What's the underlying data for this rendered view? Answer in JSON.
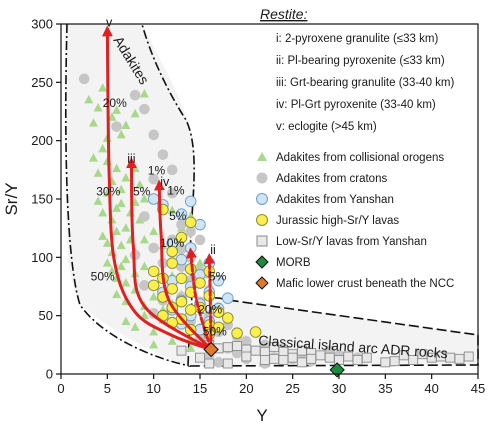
{
  "chart_data": {
    "type": "scatter",
    "xlabel": "Y",
    "ylabel": "Sr/Y",
    "xlim": [
      0,
      45
    ],
    "ylim": [
      0,
      300
    ],
    "xticks": [
      "0",
      "5",
      "10",
      "15",
      "20",
      "25",
      "30",
      "35",
      "40",
      "45"
    ],
    "yticks": [
      "0",
      "50",
      "100",
      "150",
      "200",
      "250",
      "300"
    ],
    "grid": false,
    "legend_position": "right",
    "colors": {
      "adakite_orogen": "#a8d88a",
      "adakite_craton": "#c6c6c6",
      "adakite_yanshan_fill": "#cfe4f5",
      "adakite_yanshan_edge": "#6b9cc9",
      "jurassic_fill": "#fbef4c",
      "jurassic_edge": "#8a8a3a",
      "low_sry_fill": "#e8e8e8",
      "low_sry_edge": "#8a8a8a",
      "morb": "#1a8c3c",
      "mafic_crust": "#e07a2a",
      "model_curve": "#e02020"
    },
    "restite": {
      "title": "Restite:",
      "items": [
        "i: 2-pyroxene granulite (≤33 km)",
        "ii: Pl-bearing pyroxenite (≤33 km)",
        "iii: Grt-bearing granulite (33-40 km)",
        "iv: Pl-Grt pyroxenite (33-40 km)",
        "v: eclogite (>45 km)"
      ]
    },
    "regions": {
      "adakites": "Adakites",
      "classical": "Classical island arc ADR rocks"
    },
    "series": [
      {
        "name": "Adakites from collisional orogens",
        "marker": "triangle",
        "points": [
          [
            3,
            235
          ],
          [
            3.5,
            215
          ],
          [
            4,
            228
          ],
          [
            4.5,
            245
          ],
          [
            5,
            202
          ],
          [
            5.5,
            220
          ],
          [
            6,
            226
          ],
          [
            6.5,
            205
          ],
          [
            7,
            213
          ],
          [
            8,
            223
          ],
          [
            9,
            240
          ],
          [
            3.5,
            185
          ],
          [
            4,
            172
          ],
          [
            4.5,
            193
          ],
          [
            5,
            182
          ],
          [
            5.5,
            165
          ],
          [
            6,
            176
          ],
          [
            6.5,
            158
          ],
          [
            7,
            168
          ],
          [
            7.5,
            180
          ],
          [
            8,
            176
          ],
          [
            8.5,
            162
          ],
          [
            4,
            148
          ],
          [
            4.5,
            138
          ],
          [
            5,
            155
          ],
          [
            5.5,
            132
          ],
          [
            6,
            142
          ],
          [
            6.5,
            146
          ],
          [
            7,
            125
          ],
          [
            7.5,
            138
          ],
          [
            8,
            147
          ],
          [
            8.5,
            132
          ],
          [
            9,
            150
          ],
          [
            4.5,
            118
          ],
          [
            5,
            112
          ],
          [
            5.5,
            104
          ],
          [
            6,
            122
          ],
          [
            6.5,
            110
          ],
          [
            7,
            98
          ],
          [
            7.5,
            115
          ],
          [
            8,
            104
          ],
          [
            9,
            115
          ],
          [
            10,
            122
          ],
          [
            5,
            95
          ],
          [
            5.5,
            88
          ],
          [
            6,
            82
          ],
          [
            6.5,
            92
          ],
          [
            7,
            78
          ],
          [
            8,
            86
          ],
          [
            9,
            92
          ],
          [
            10,
            75
          ],
          [
            11,
            96
          ],
          [
            12,
            84
          ],
          [
            6,
            68
          ],
          [
            7,
            62
          ],
          [
            8,
            72
          ],
          [
            9,
            58
          ],
          [
            10,
            66
          ],
          [
            11,
            55
          ],
          [
            12,
            60
          ],
          [
            13,
            68
          ],
          [
            7,
            45
          ],
          [
            8,
            40
          ],
          [
            9,
            50
          ],
          [
            10,
            36
          ],
          [
            11,
            46
          ],
          [
            12,
            42
          ],
          [
            13,
            48
          ],
          [
            14,
            30
          ],
          [
            10,
            25
          ],
          [
            12,
            28
          ],
          [
            14,
            22
          ],
          [
            15,
            40
          ],
          [
            13,
            125
          ],
          [
            14,
            135
          ],
          [
            12,
            140
          ],
          [
            15,
            95
          ],
          [
            11,
            110
          ],
          [
            16,
            85
          ]
        ]
      },
      {
        "name": "Adakites from cratons",
        "marker": "circle",
        "points": [
          [
            2.5,
            253
          ],
          [
            8,
            239
          ],
          [
            9,
            227
          ],
          [
            6,
            212
          ],
          [
            10,
            205
          ],
          [
            11,
            188
          ],
          [
            12,
            175
          ],
          [
            10,
            167
          ],
          [
            12,
            155
          ],
          [
            11,
            142
          ],
          [
            9,
            135
          ],
          [
            13,
            128
          ],
          [
            14,
            122
          ],
          [
            12,
            115
          ],
          [
            10,
            108
          ],
          [
            8,
            102
          ],
          [
            11,
            95
          ],
          [
            13,
            92
          ],
          [
            15,
            88
          ],
          [
            14,
            80
          ],
          [
            12,
            78
          ],
          [
            16,
            72
          ],
          [
            13,
            66
          ],
          [
            15,
            62
          ],
          [
            17,
            57
          ],
          [
            16,
            50
          ],
          [
            14,
            45
          ],
          [
            18,
            42
          ],
          [
            17,
            36
          ],
          [
            19,
            32
          ],
          [
            20,
            28
          ],
          [
            15,
            30
          ],
          [
            18,
            22
          ],
          [
            21,
            20
          ],
          [
            22,
            25
          ],
          [
            24,
            22
          ],
          [
            26,
            18
          ],
          [
            23,
            14
          ],
          [
            25,
            13
          ],
          [
            27,
            11
          ],
          [
            20,
            13
          ],
          [
            19,
            18
          ],
          [
            16,
            16
          ],
          [
            17,
            10
          ],
          [
            22,
            9
          ],
          [
            29,
            20
          ],
          [
            30,
            16
          ],
          [
            32,
            14
          ],
          [
            14,
            100
          ],
          [
            13,
            107
          ],
          [
            15,
            115
          ],
          [
            9,
            76
          ],
          [
            10,
            52
          ],
          [
            11,
            63
          ]
        ]
      },
      {
        "name": "Adakites from Yanshan",
        "marker": "circle-open",
        "points": [
          [
            10,
            150
          ],
          [
            11,
            145
          ],
          [
            14,
            148
          ],
          [
            13,
            137
          ],
          [
            15,
            128
          ],
          [
            12,
            112
          ],
          [
            14,
            108
          ],
          [
            13,
            98
          ],
          [
            16,
            95
          ],
          [
            15,
            85
          ],
          [
            17,
            80
          ],
          [
            14,
            75
          ],
          [
            16,
            70
          ],
          [
            13,
            63
          ],
          [
            15,
            60
          ],
          [
            12,
            55
          ],
          [
            17,
            56
          ],
          [
            14,
            50
          ],
          [
            16,
            45
          ],
          [
            13,
            43
          ],
          [
            15,
            38
          ],
          [
            12,
            80
          ],
          [
            18,
            65
          ],
          [
            11,
            70
          ]
        ]
      },
      {
        "name": "Jurassic high-Sr/Y lavas",
        "marker": "circle",
        "points": [
          [
            11,
            141
          ],
          [
            13,
            117
          ],
          [
            14,
            130
          ],
          [
            12,
            105
          ],
          [
            12,
            95
          ],
          [
            10,
            88
          ],
          [
            14,
            90
          ],
          [
            16,
            88
          ],
          [
            11,
            82
          ],
          [
            13,
            82
          ],
          [
            15,
            78
          ],
          [
            10,
            76
          ],
          [
            12,
            73
          ],
          [
            14,
            70
          ],
          [
            16,
            67
          ],
          [
            11,
            66
          ],
          [
            13,
            62
          ],
          [
            15,
            57
          ],
          [
            17,
            53
          ],
          [
            12,
            57
          ],
          [
            14,
            55
          ],
          [
            11,
            50
          ],
          [
            13,
            47
          ],
          [
            16,
            42
          ],
          [
            14,
            38
          ],
          [
            12,
            44
          ],
          [
            18,
            48
          ],
          [
            17,
            40
          ],
          [
            19,
            35
          ],
          [
            21,
            36
          ],
          [
            16,
            34
          ]
        ]
      },
      {
        "name": "Low-Sr/Y lavas from Yanshan",
        "marker": "square",
        "points": [
          [
            16,
            25
          ],
          [
            17,
            22
          ],
          [
            18,
            23
          ],
          [
            19,
            24
          ],
          [
            20,
            21
          ],
          [
            21,
            20
          ],
          [
            22,
            19
          ],
          [
            23,
            23
          ],
          [
            24,
            19
          ],
          [
            25,
            17
          ],
          [
            26,
            20
          ],
          [
            27,
            18
          ],
          [
            28,
            16
          ],
          [
            29,
            14
          ],
          [
            23,
            13
          ],
          [
            25,
            14
          ],
          [
            27,
            13
          ],
          [
            13,
            20
          ],
          [
            15,
            14
          ],
          [
            16,
            9
          ],
          [
            18,
            9
          ],
          [
            20,
            15
          ],
          [
            22,
            12
          ],
          [
            24,
            12
          ],
          [
            26,
            10
          ],
          [
            30,
            12
          ],
          [
            31,
            15
          ],
          [
            32,
            12
          ],
          [
            35,
            10
          ],
          [
            36,
            11
          ],
          [
            37,
            16
          ],
          [
            38,
            12
          ],
          [
            39,
            17
          ],
          [
            40,
            14
          ],
          [
            41,
            15
          ],
          [
            42,
            14
          ],
          [
            43,
            13
          ],
          [
            44,
            15
          ],
          [
            33,
            14
          ]
        ]
      },
      {
        "name": "MORB",
        "marker": "diamond",
        "points": [
          [
            29.8,
            3.5
          ]
        ]
      },
      {
        "name": "Mafic lower crust beneath the NCC",
        "marker": "diamond",
        "points": [
          [
            16.2,
            21
          ]
        ]
      }
    ],
    "curves": [
      {
        "name": "v",
        "points": [
          [
            16.2,
            21
          ],
          [
            12,
            33
          ],
          [
            8,
            53
          ],
          [
            5.8,
            95
          ],
          [
            5.2,
            170
          ],
          [
            5,
            295
          ]
        ]
      },
      {
        "name": "iii",
        "points": [
          [
            16.2,
            21
          ],
          [
            9,
            58
          ],
          [
            7.8,
            110
          ],
          [
            7.6,
            182
          ]
        ]
      },
      {
        "name": "iv",
        "points": [
          [
            16.2,
            21
          ],
          [
            11.6,
            64
          ],
          [
            10.8,
            120
          ],
          [
            10.6,
            163
          ]
        ]
      },
      {
        "name": "ii",
        "points": [
          [
            16.2,
            21
          ],
          [
            14.6,
            64
          ],
          [
            14,
            105
          ]
        ]
      },
      {
        "name": "i",
        "points": [
          [
            16.2,
            21
          ],
          [
            16.1,
            68
          ],
          [
            16,
            100
          ]
        ]
      }
    ],
    "path_labels": [
      {
        "text": "v",
        "x": 5.2,
        "y": 298
      },
      {
        "text": "iii",
        "x": 7.6,
        "y": 181
      },
      {
        "text": "iv",
        "x": 11.2,
        "y": 161
      },
      {
        "text": "ii",
        "x": 16.4,
        "y": 103
      }
    ],
    "percent_labels": [
      {
        "text": "20%",
        "x": 5.8,
        "y": 229
      },
      {
        "text": "30%",
        "x": 5.1,
        "y": 153
      },
      {
        "text": "50%",
        "x": 4.5,
        "y": 80
      },
      {
        "text": "5%",
        "x": 8.7,
        "y": 153
      },
      {
        "text": "1%",
        "x": 10.3,
        "y": 171
      },
      {
        "text": "1%",
        "x": 12.4,
        "y": 154
      },
      {
        "text": "5%",
        "x": 12.6,
        "y": 132
      },
      {
        "text": "10%",
        "x": 12,
        "y": 109
      },
      {
        "text": "5%",
        "x": 16.9,
        "y": 80
      },
      {
        "text": "20%",
        "x": 16.1,
        "y": 52
      },
      {
        "text": "50%",
        "x": 16.6,
        "y": 33
      }
    ]
  }
}
